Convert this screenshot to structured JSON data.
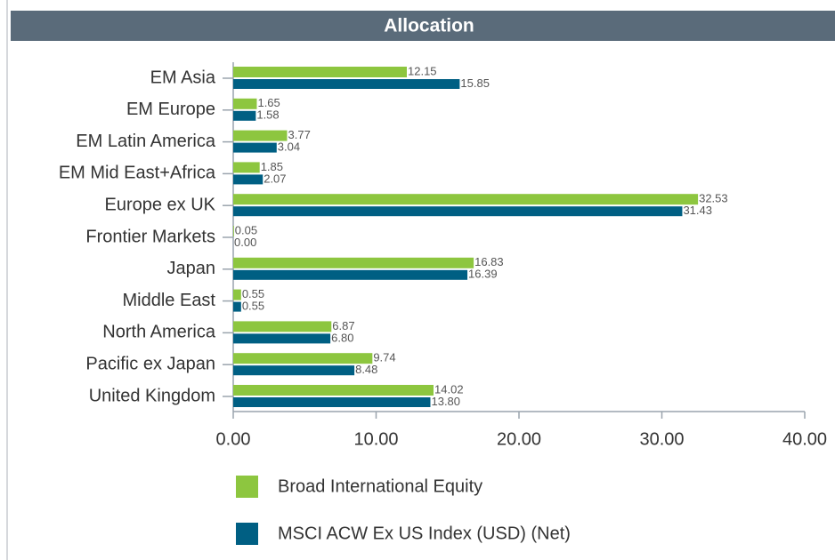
{
  "chart_data": {
    "type": "bar",
    "orientation": "horizontal",
    "title": "Allocation",
    "categories": [
      "EM Asia",
      "EM Europe",
      "EM Latin America",
      "EM Mid East+Africa",
      "Europe ex UK",
      "Frontier Markets",
      "Japan",
      "Middle East",
      "North America",
      "Pacific ex Japan",
      "United Kingdom"
    ],
    "series": [
      {
        "name": "Broad International Equity",
        "color": "#8dc63f",
        "values": [
          12.15,
          1.65,
          3.77,
          1.85,
          32.53,
          0.05,
          16.83,
          0.55,
          6.87,
          9.74,
          14.02
        ],
        "value_labels": [
          "12.15",
          "1.65",
          "3.77",
          "1.85",
          "32.53",
          "0.05",
          "16.83",
          "0.55",
          "6.87",
          "9.74",
          "14.02"
        ]
      },
      {
        "name": "MSCI ACW Ex US Index (USD) (Net)",
        "color": "#005f83",
        "values": [
          15.85,
          1.58,
          3.04,
          2.07,
          31.43,
          0,
          16.39,
          0.55,
          6.8,
          8.48,
          13.8
        ],
        "value_labels": [
          "15.85",
          "1.58",
          "3.04",
          "2.07",
          "31.43",
          "0.00",
          "16.39",
          "0.55",
          "6.80",
          "8.48",
          "13.80"
        ]
      }
    ],
    "xlim": [
      0,
      40
    ],
    "xticks": [
      {
        "value": 0,
        "label": "0.00"
      },
      {
        "value": 10,
        "label": "10.00"
      },
      {
        "value": 20,
        "label": "20.00"
      },
      {
        "value": 30,
        "label": "30.00"
      },
      {
        "value": 40,
        "label": "40.00"
      }
    ],
    "legend": "bottom"
  }
}
